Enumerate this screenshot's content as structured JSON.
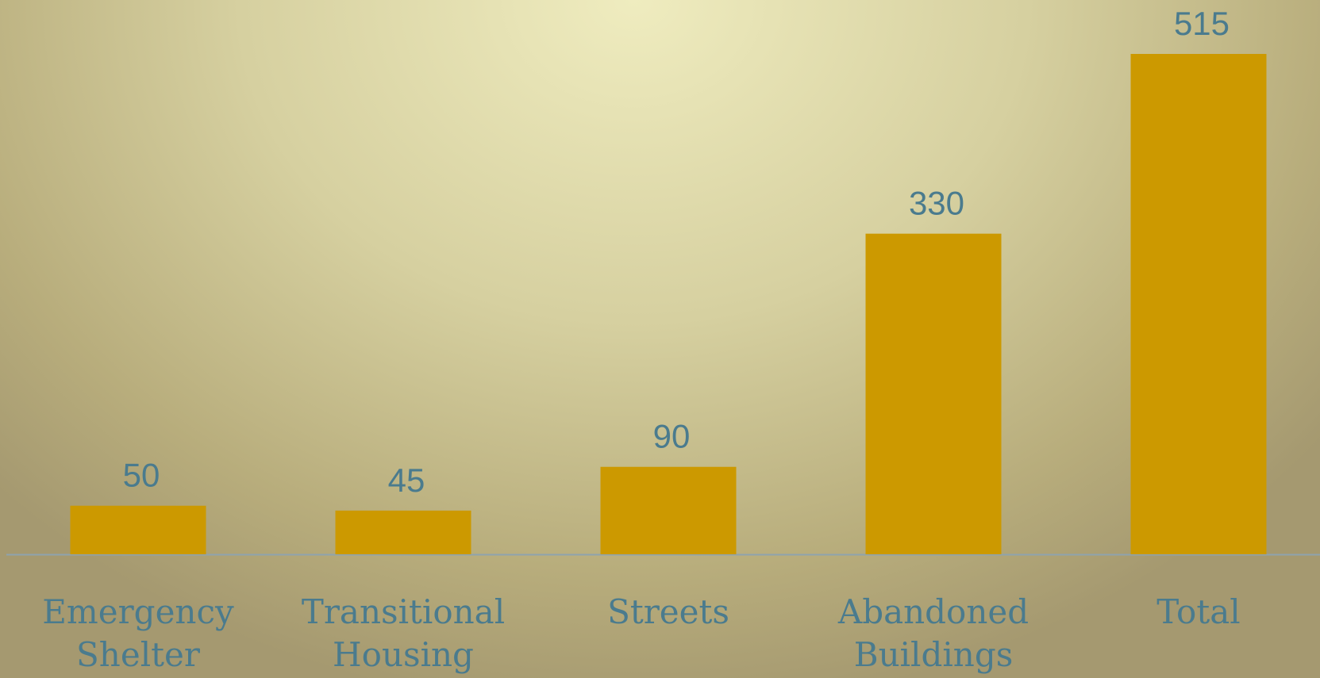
{
  "chart_data": {
    "type": "bar",
    "categories": [
      "Emergency Shelter",
      "Transitional Housing",
      "Streets",
      "Abandoned Buildings",
      "Total"
    ],
    "values": [
      50,
      45,
      90,
      330,
      515
    ],
    "color": "#cc9900"
  }
}
